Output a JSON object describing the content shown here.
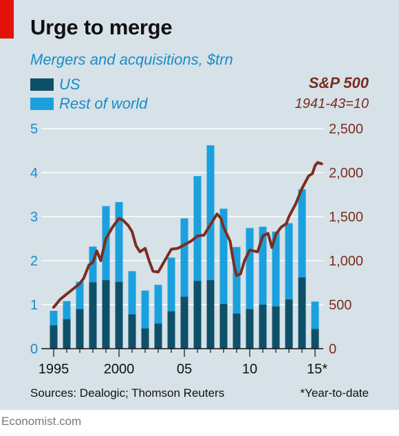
{
  "header": {
    "title": "Urge to merge",
    "subtitle": "Mergers and acquisitions, $trn"
  },
  "legend": [
    {
      "label": "US",
      "color": "#0e5068"
    },
    {
      "label": "Rest of world",
      "color": "#1ba0de"
    }
  ],
  "right_axis_label": {
    "title": "S&P 500",
    "subtitle": "1941-43=10"
  },
  "footer": {
    "source": "Sources: Dealogic; Thomson Reuters",
    "footnote": "*Year-to-date",
    "brand": "Economist.com"
  },
  "colors": {
    "us": "#0e5068",
    "row": "#1ba0de",
    "line": "#7b2d1f",
    "grid": "#ffffff",
    "axis": "#111111"
  },
  "chart_data": {
    "type": "bar",
    "title": "Urge to merge",
    "subtitle": "Mergers and acquisitions, $trn",
    "categories": [
      "1995",
      "1996",
      "1997",
      "1998",
      "1999",
      "2000",
      "2001",
      "2002",
      "2003",
      "2004",
      "2005",
      "2006",
      "2007",
      "2008",
      "2009",
      "2010",
      "2011",
      "2012",
      "2013",
      "2014",
      "2015*"
    ],
    "series": [
      {
        "name": "US",
        "values": [
          0.53,
          0.67,
          0.9,
          1.51,
          1.56,
          1.52,
          0.78,
          0.46,
          0.57,
          0.85,
          1.18,
          1.54,
          1.56,
          1.02,
          0.8,
          0.9,
          1.0,
          0.96,
          1.12,
          1.62,
          0.45
        ]
      },
      {
        "name": "Rest of world",
        "values": [
          0.33,
          0.41,
          0.62,
          0.81,
          1.68,
          1.81,
          0.98,
          0.86,
          0.88,
          1.22,
          1.78,
          2.38,
          3.06,
          2.16,
          1.51,
          1.84,
          1.77,
          1.7,
          1.73,
          2.0,
          0.62
        ]
      }
    ],
    "ylim": [
      0,
      5
    ],
    "yticks": [
      0,
      1,
      2,
      3,
      4,
      5
    ],
    "y2lim": [
      0,
      2500
    ],
    "y2ticks": [
      "0",
      "500",
      "1,000",
      "1,500",
      "2,000",
      "2,500"
    ],
    "xtick_labels": [
      {
        "index": 0,
        "label": "1995"
      },
      {
        "index": 5,
        "label": "2000"
      },
      {
        "index": 10,
        "label": "05"
      },
      {
        "index": 15,
        "label": "10"
      },
      {
        "index": 20,
        "label": "15*"
      }
    ],
    "line_series": {
      "name": "S&P 500",
      "axis": "right",
      "points": [
        [
          1995.0,
          470
        ],
        [
          1995.5,
          560
        ],
        [
          1996.0,
          620
        ],
        [
          1996.5,
          680
        ],
        [
          1997.0,
          740
        ],
        [
          1997.3,
          800
        ],
        [
          1997.7,
          950
        ],
        [
          1998.0,
          980
        ],
        [
          1998.3,
          1110
        ],
        [
          1998.6,
          1000
        ],
        [
          1999.0,
          1250
        ],
        [
          1999.5,
          1380
        ],
        [
          2000.0,
          1480
        ],
        [
          2000.3,
          1460
        ],
        [
          2000.7,
          1400
        ],
        [
          2001.0,
          1330
        ],
        [
          2001.3,
          1170
        ],
        [
          2001.6,
          1100
        ],
        [
          2002.0,
          1140
        ],
        [
          2002.3,
          1000
        ],
        [
          2002.6,
          880
        ],
        [
          2003.0,
          870
        ],
        [
          2003.5,
          1000
        ],
        [
          2004.0,
          1130
        ],
        [
          2004.5,
          1140
        ],
        [
          2005.0,
          1180
        ],
        [
          2005.5,
          1220
        ],
        [
          2006.0,
          1280
        ],
        [
          2006.5,
          1290
        ],
        [
          2007.0,
          1410
        ],
        [
          2007.5,
          1530
        ],
        [
          2007.8,
          1480
        ],
        [
          2008.0,
          1380
        ],
        [
          2008.5,
          1220
        ],
        [
          2008.8,
          950
        ],
        [
          2009.0,
          830
        ],
        [
          2009.3,
          850
        ],
        [
          2009.6,
          1000
        ],
        [
          2010.0,
          1120
        ],
        [
          2010.3,
          1110
        ],
        [
          2010.6,
          1100
        ],
        [
          2011.0,
          1280
        ],
        [
          2011.4,
          1310
        ],
        [
          2011.7,
          1150
        ],
        [
          2012.0,
          1300
        ],
        [
          2012.4,
          1380
        ],
        [
          2012.8,
          1420
        ],
        [
          2013.0,
          1500
        ],
        [
          2013.5,
          1640
        ],
        [
          2014.0,
          1820
        ],
        [
          2014.5,
          1960
        ],
        [
          2014.8,
          1990
        ],
        [
          2015.0,
          2080
        ],
        [
          2015.2,
          2115
        ],
        [
          2015.5,
          2100
        ]
      ]
    }
  }
}
